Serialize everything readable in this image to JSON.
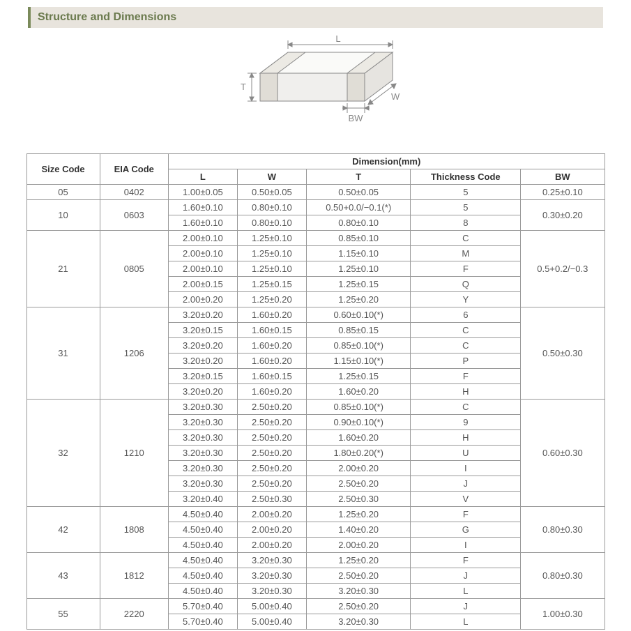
{
  "header": {
    "title": "Structure and Dimensions"
  },
  "diagram": {
    "labels": {
      "L": "L",
      "W": "W",
      "T": "T",
      "BW": "BW"
    },
    "stroke": "#888888",
    "fill": "#f0efed",
    "text_color": "#888888"
  },
  "table": {
    "headers": {
      "size_code": "Size Code",
      "eia_code": "EIA Code",
      "dimension": "Dimension(mm)",
      "L": "L",
      "W": "W",
      "T": "T",
      "thickness_code": "Thickness Code",
      "BW": "BW"
    },
    "groups": [
      {
        "size": "05",
        "eia": "0402",
        "bw": "0.25±0.10",
        "rows": [
          {
            "L": "1.00±0.05",
            "W": "0.50±0.05",
            "T": "0.50±0.05",
            "tc": "5"
          }
        ]
      },
      {
        "size": "10",
        "eia": "0603",
        "bw": "0.30±0.20",
        "rows": [
          {
            "L": "1.60±0.10",
            "W": "0.80±0.10",
            "T": "0.50+0.0/−0.1(*)",
            "tc": "5"
          },
          {
            "L": "1.60±0.10",
            "W": "0.80±0.10",
            "T": "0.80±0.10",
            "tc": "8"
          }
        ]
      },
      {
        "size": "21",
        "eia": "0805",
        "bw": "0.5+0.2/−0.3",
        "rows": [
          {
            "L": "2.00±0.10",
            "W": "1.25±0.10",
            "T": "0.85±0.10",
            "tc": "C"
          },
          {
            "L": "2.00±0.10",
            "W": "1.25±0.10",
            "T": "1.15±0.10",
            "tc": "M"
          },
          {
            "L": "2.00±0.10",
            "W": "1.25±0.10",
            "T": "1.25±0.10",
            "tc": "F"
          },
          {
            "L": "2.00±0.15",
            "W": "1.25±0.15",
            "T": "1.25±0.15",
            "tc": "Q"
          },
          {
            "L": "2.00±0.20",
            "W": "1.25±0.20",
            "T": "1.25±0.20",
            "tc": "Y"
          }
        ]
      },
      {
        "size": "31",
        "eia": "1206",
        "bw": "0.50±0.30",
        "rows": [
          {
            "L": "3.20±0.20",
            "W": "1.60±0.20",
            "T": "0.60±0.10(*)",
            "tc": "6"
          },
          {
            "L": "3.20±0.15",
            "W": "1.60±0.15",
            "T": "0.85±0.15",
            "tc": "C"
          },
          {
            "L": "3.20±0.20",
            "W": "1.60±0.20",
            "T": "0.85±0.10(*)",
            "tc": "C"
          },
          {
            "L": "3.20±0.20",
            "W": "1.60±0.20",
            "T": "1.15±0.10(*)",
            "tc": "P"
          },
          {
            "L": "3.20±0.15",
            "W": "1.60±0.15",
            "T": "1.25±0.15",
            "tc": "F"
          },
          {
            "L": "3.20±0.20",
            "W": "1.60±0.20",
            "T": "1.60±0.20",
            "tc": "H"
          }
        ]
      },
      {
        "size": "32",
        "eia": "1210",
        "bw": "0.60±0.30",
        "rows": [
          {
            "L": "3.20±0.30",
            "W": "2.50±0.20",
            "T": "0.85±0.10(*)",
            "tc": "C"
          },
          {
            "L": "3.20±0.30",
            "W": "2.50±0.20",
            "T": "0.90±0.10(*)",
            "tc": "9"
          },
          {
            "L": "3.20±0.30",
            "W": "2.50±0.20",
            "T": "1.60±0.20",
            "tc": "H"
          },
          {
            "L": "3.20±0.30",
            "W": "2.50±0.20",
            "T": "1.80±0.20(*)",
            "tc": "U"
          },
          {
            "L": "3.20±0.30",
            "W": "2.50±0.20",
            "T": "2.00±0.20",
            "tc": "I"
          },
          {
            "L": "3.20±0.30",
            "W": "2.50±0.20",
            "T": "2.50±0.20",
            "tc": "J"
          },
          {
            "L": "3.20±0.40",
            "W": "2.50±0.30",
            "T": "2.50±0.30",
            "tc": "V"
          }
        ]
      },
      {
        "size": "42",
        "eia": "1808",
        "bw": "0.80±0.30",
        "rows": [
          {
            "L": "4.50±0.40",
            "W": "2.00±0.20",
            "T": "1.25±0.20",
            "tc": "F"
          },
          {
            "L": "4.50±0.40",
            "W": "2.00±0.20",
            "T": "1.40±0.20",
            "tc": "G"
          },
          {
            "L": "4.50±0.40",
            "W": "2.00±0.20",
            "T": "2.00±0.20",
            "tc": "I"
          }
        ]
      },
      {
        "size": "43",
        "eia": "1812",
        "bw": "0.80±0.30",
        "rows": [
          {
            "L": "4.50±0.40",
            "W": "3.20±0.30",
            "T": "1.25±0.20",
            "tc": "F"
          },
          {
            "L": "4.50±0.40",
            "W": "3.20±0.30",
            "T": "2.50±0.20",
            "tc": "J"
          },
          {
            "L": "4.50±0.40",
            "W": "3.20±0.30",
            "T": "3.20±0.30",
            "tc": "L"
          }
        ]
      },
      {
        "size": "55",
        "eia": "2220",
        "bw": "1.00±0.30",
        "rows": [
          {
            "L": "5.70±0.40",
            "W": "5.00±0.40",
            "T": "2.50±0.20",
            "tc": "J"
          },
          {
            "L": "5.70±0.40",
            "W": "5.00±0.40",
            "T": "3.20±0.30",
            "tc": "L"
          }
        ]
      }
    ]
  }
}
